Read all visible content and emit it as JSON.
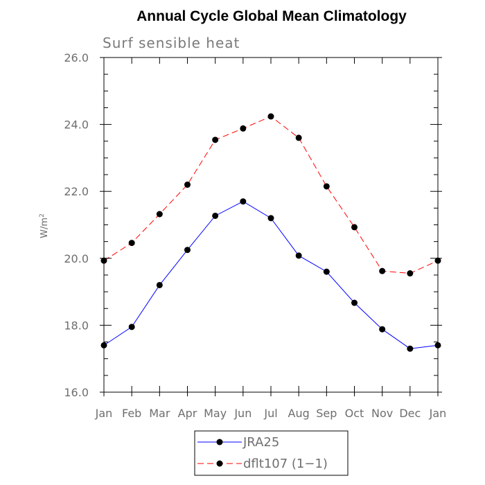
{
  "chart_data": {
    "type": "line",
    "title": "Annual Cycle Global Mean Climatology",
    "subtitle": "Surf sensible heat",
    "xlabel": "",
    "ylabel": "W/m",
    "ylabel_superscript": "2",
    "categories": [
      "Jan",
      "Feb",
      "Mar",
      "Apr",
      "May",
      "Jun",
      "Jul",
      "Aug",
      "Sep",
      "Oct",
      "Nov",
      "Dec",
      "Jan"
    ],
    "ylim": [
      16.0,
      26.0
    ],
    "yticks": [
      "16.0",
      "18.0",
      "20.0",
      "22.0",
      "24.0",
      "26.0"
    ],
    "grid": false,
    "legend_position": "bottom-center",
    "series": [
      {
        "name": "JRA25",
        "color": "#0000ff",
        "dash": "solid",
        "values": [
          17.4,
          17.95,
          19.2,
          20.25,
          21.27,
          21.7,
          21.2,
          20.08,
          19.6,
          18.67,
          17.88,
          17.3,
          17.4
        ]
      },
      {
        "name": "dflt107 (1−1)",
        "color": "#ff0000",
        "dash": "dashed",
        "values": [
          19.93,
          20.46,
          21.32,
          22.2,
          23.54,
          23.88,
          24.24,
          23.6,
          22.15,
          20.93,
          19.62,
          19.55,
          19.93
        ]
      }
    ]
  }
}
